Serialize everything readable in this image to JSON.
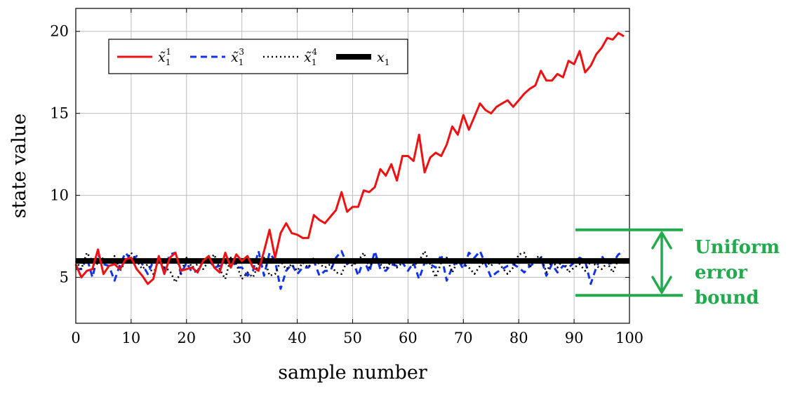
{
  "chart_data": {
    "type": "line",
    "xlabel": "sample number",
    "ylabel": "state value",
    "xlim": [
      0,
      100
    ],
    "ylim": [
      2.2,
      21.4
    ],
    "xticks": [
      0,
      10,
      20,
      30,
      40,
      50,
      60,
      70,
      80,
      90,
      100
    ],
    "yticks": [
      5,
      10,
      15,
      20
    ],
    "grid": true,
    "legend_position": "top-left",
    "series": [
      {
        "name": "x̃11",
        "legend_base": "x̃",
        "legend_sub": "1",
        "legend_sup": "1",
        "color": "#ee1111",
        "style": "solid",
        "x": [
          0,
          1,
          2,
          3,
          4,
          5,
          6,
          7,
          8,
          9,
          10,
          11,
          12,
          13,
          14,
          15,
          16,
          17,
          18,
          19,
          20,
          21,
          22,
          23,
          24,
          25,
          26,
          27,
          28,
          29,
          30,
          31,
          32,
          33,
          34,
          35,
          36,
          37,
          38,
          39,
          40,
          41,
          42,
          43,
          44,
          45,
          46,
          47,
          48,
          49,
          50,
          51,
          52,
          53,
          54,
          55,
          56,
          57,
          58,
          59,
          60,
          61,
          62,
          63,
          64,
          65,
          66,
          67,
          68,
          69,
          70,
          71,
          72,
          73,
          74,
          75,
          76,
          77,
          78,
          79,
          80,
          81,
          82,
          83,
          84,
          85,
          86,
          87,
          88,
          89,
          90,
          91,
          92,
          93,
          94,
          95,
          96,
          97,
          98,
          99
        ],
        "values": [
          5.8,
          5.0,
          5.4,
          5.5,
          6.7,
          5.2,
          5.7,
          5.8,
          5.5,
          6.1,
          6.2,
          5.5,
          5.1,
          4.6,
          4.9,
          6.3,
          5.2,
          6.2,
          6.5,
          5.4,
          5.5,
          5.6,
          5.3,
          6.0,
          6.3,
          5.6,
          5.3,
          6.5,
          5.6,
          6.4,
          6.0,
          6.3,
          5.6,
          5.4,
          6.6,
          7.9,
          6.2,
          7.7,
          8.3,
          7.7,
          7.6,
          7.4,
          7.4,
          8.8,
          8.5,
          8.3,
          8.7,
          9.1,
          10.2,
          9.0,
          9.3,
          9.3,
          10.3,
          10.2,
          10.5,
          11.6,
          11.2,
          11.9,
          10.9,
          12.4,
          12.4,
          12.1,
          13.7,
          11.4,
          12.3,
          12.6,
          12.4,
          13.1,
          14.2,
          13.7,
          14.9,
          14.0,
          14.8,
          15.6,
          15.2,
          15.0,
          15.4,
          15.6,
          15.8,
          15.4,
          15.8,
          16.2,
          16.5,
          16.7,
          17.6,
          17.0,
          17.0,
          17.4,
          17.2,
          18.2,
          18.0,
          18.8,
          17.5,
          17.9,
          18.6,
          19.0,
          19.6,
          19.5,
          19.9,
          19.7
        ]
      },
      {
        "name": "x̃13",
        "legend_base": "x̃",
        "legend_sub": "1",
        "legend_sup": "3",
        "color": "#1133ee",
        "style": "dashed",
        "x": [
          0,
          1,
          2,
          3,
          4,
          5,
          6,
          7,
          8,
          9,
          10,
          11,
          12,
          13,
          14,
          15,
          16,
          17,
          18,
          19,
          20,
          21,
          22,
          23,
          24,
          25,
          26,
          27,
          28,
          29,
          30,
          31,
          32,
          33,
          34,
          35,
          36,
          37,
          38,
          39,
          40,
          41,
          42,
          43,
          44,
          45,
          46,
          47,
          48,
          49,
          50,
          51,
          52,
          53,
          54,
          55,
          56,
          57,
          58,
          59,
          60,
          61,
          62,
          63,
          64,
          65,
          66,
          67,
          68,
          69,
          70,
          71,
          72,
          73,
          74,
          75,
          76,
          77,
          78,
          79,
          80,
          81,
          82,
          83,
          84,
          85,
          86,
          87,
          88,
          89,
          90,
          91,
          92,
          93,
          94,
          95,
          96,
          97,
          98,
          99
        ],
        "values": [
          5.5,
          5.5,
          6.2,
          5.0,
          6.4,
          5.8,
          5.7,
          4.8,
          5.8,
          6.5,
          6.0,
          6.3,
          5.8,
          5.2,
          6.0,
          6.0,
          5.5,
          6.4,
          6.5,
          5.2,
          5.9,
          5.3,
          5.4,
          6.0,
          6.1,
          5.6,
          5.7,
          5.8,
          6.2,
          5.6,
          5.6,
          5.1,
          5.4,
          6.6,
          5.1,
          6.5,
          6.0,
          4.3,
          5.4,
          5.8,
          5.2,
          5.6,
          5.6,
          6.0,
          5.1,
          5.4,
          5.4,
          6.2,
          6.6,
          5.8,
          6.1,
          5.1,
          6.1,
          5.3,
          6.6,
          5.5,
          5.4,
          5.8,
          5.7,
          5.9,
          5.4,
          5.9,
          4.9,
          5.9,
          5.8,
          5.6,
          6.4,
          4.8,
          5.6,
          6.1,
          5.5,
          6.5,
          6.2,
          6.6,
          5.8,
          5.0,
          5.3,
          5.5,
          5.7,
          5.8,
          5.6,
          5.3,
          5.7,
          5.9,
          6.2,
          5.1,
          5.8,
          5.3,
          5.7,
          5.6,
          5.9,
          6.2,
          6.0,
          4.6,
          5.6,
          6.3,
          5.8,
          5.9,
          6.4,
          6.6
        ]
      },
      {
        "name": "x̃14",
        "legend_base": "x̃",
        "legend_sub": "1",
        "legend_sup": "4",
        "color": "#000000",
        "style": "dotted",
        "x": [
          0,
          1,
          2,
          3,
          4,
          5,
          6,
          7,
          8,
          9,
          10,
          11,
          12,
          13,
          14,
          15,
          16,
          17,
          18,
          19,
          20,
          21,
          22,
          23,
          24,
          25,
          26,
          27,
          28,
          29,
          30,
          31,
          32,
          33,
          34,
          35,
          36,
          37,
          38,
          39,
          40,
          41,
          42,
          43,
          44,
          45,
          46,
          47,
          48,
          49,
          50,
          51,
          52,
          53,
          54,
          55,
          56,
          57,
          58,
          59,
          60,
          61,
          62,
          63,
          64,
          65,
          66,
          67,
          68,
          69,
          70,
          71,
          72,
          73,
          74,
          75,
          76,
          77,
          78,
          79,
          80,
          81,
          82,
          83,
          84,
          85,
          86,
          87,
          88,
          89,
          90,
          91,
          92,
          93,
          94,
          95,
          96,
          97,
          98,
          99
        ],
        "values": [
          6.0,
          5.5,
          6.5,
          6.0,
          5.8,
          6.2,
          5.9,
          6.3,
          5.4,
          6.0,
          6.5,
          6.0,
          5.5,
          5.8,
          5.2,
          6.1,
          5.6,
          5.4,
          4.7,
          5.3,
          6.2,
          5.6,
          5.8,
          5.5,
          6.0,
          6.4,
          5.5,
          4.9,
          6.2,
          5.8,
          4.9,
          5.3,
          5.0,
          5.8,
          6.2,
          5.1,
          5.2,
          6.0,
          5.5,
          5.8,
          5.4,
          5.9,
          5.6,
          6.2,
          5.8,
          5.6,
          5.8,
          5.3,
          5.2,
          6.0,
          5.7,
          6.0,
          6.5,
          5.6,
          6.2,
          5.8,
          5.5,
          6.0,
          5.6,
          5.9,
          6.1,
          5.7,
          6.0,
          6.6,
          5.8,
          5.0,
          5.9,
          6.2,
          5.3,
          6.0,
          5.8,
          5.6,
          5.2,
          5.7,
          6.0,
          5.7,
          6.1,
          5.6,
          5.2,
          5.6,
          6.4,
          6.5,
          5.6,
          6.2,
          6.3,
          5.3,
          6.0,
          5.6,
          6.1,
          5.3,
          5.6,
          5.8,
          5.4,
          6.0,
          5.7,
          5.5,
          5.9,
          5.3,
          6.1,
          5.8
        ]
      },
      {
        "name": "x1",
        "legend_base": "x",
        "legend_sub": "1",
        "legend_sup": "",
        "color": "#000000",
        "style": "thick",
        "x": [
          0,
          100
        ],
        "values": [
          6.0,
          6.0
        ]
      }
    ],
    "annotation": {
      "label_lines": [
        "Uniform",
        "error",
        "bound"
      ],
      "upper": 7.9,
      "lower": 3.9,
      "color": "#22aa4c"
    }
  }
}
